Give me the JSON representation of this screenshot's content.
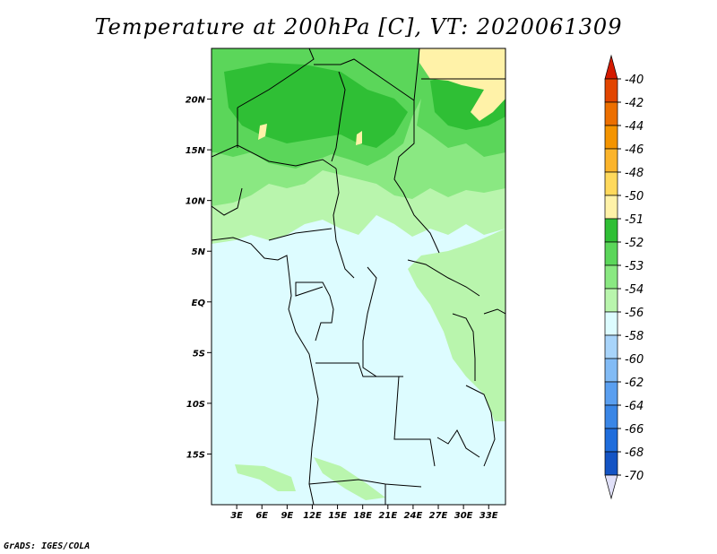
{
  "title": "Temperature at 200hPa [C], VT: 2020061309",
  "footer": "GrADS: IGES/COLA",
  "map": {
    "variable": "Temperature",
    "level": "200hPa",
    "units": "C",
    "valid_time": "2020061309",
    "lon_labels": [
      "3E",
      "6E",
      "9E",
      "12E",
      "15E",
      "18E",
      "21E",
      "24E",
      "27E",
      "30E",
      "33E"
    ],
    "lat_labels": [
      "20N",
      "15N",
      "10N",
      "5N",
      "EQ",
      "5S",
      "10S",
      "15S"
    ],
    "lon_values": [
      3,
      6,
      9,
      12,
      15,
      18,
      21,
      24,
      27,
      30,
      33
    ],
    "lat_values": [
      20,
      15,
      10,
      5,
      0,
      -5,
      -10,
      -15
    ],
    "lon_range": [
      0,
      35
    ],
    "lat_range": [
      -20,
      25
    ]
  },
  "colorbar": {
    "levels": [
      "-40",
      "-42",
      "-44",
      "-46",
      "-48",
      "-50",
      "-51",
      "-52",
      "-53",
      "-54",
      "-56",
      "-58",
      "-60",
      "-62",
      "-64",
      "-66",
      "-68",
      "-70"
    ],
    "colors": [
      "#e0e0f8",
      "#020680",
      "#0b2fa0",
      "#1454c4",
      "#1f6ddc",
      "#3a86e6",
      "#5a9ff0",
      "#82bbf5",
      "#a8d4fa",
      "#ddfcff",
      "#b9f5ad",
      "#8ae882",
      "#5bd65a",
      "#2fbf35",
      "#fff2a8",
      "#ffd95c",
      "#fbb42b",
      "#f49400",
      "#ec6f00",
      "#e24500",
      "#d41a00"
    ],
    "color_roles": {
      "bottom_arrow": "#e0e0f8",
      "top_arrow": "#d41a00"
    }
  },
  "colors": {
    "lightcyan": "#ddfcff",
    "lightgreen": "#b9f5ad",
    "green": "#8ae882",
    "midgreen": "#5bd65a",
    "darkgreen": "#2fbf35",
    "yellow": "#fff2a8"
  }
}
